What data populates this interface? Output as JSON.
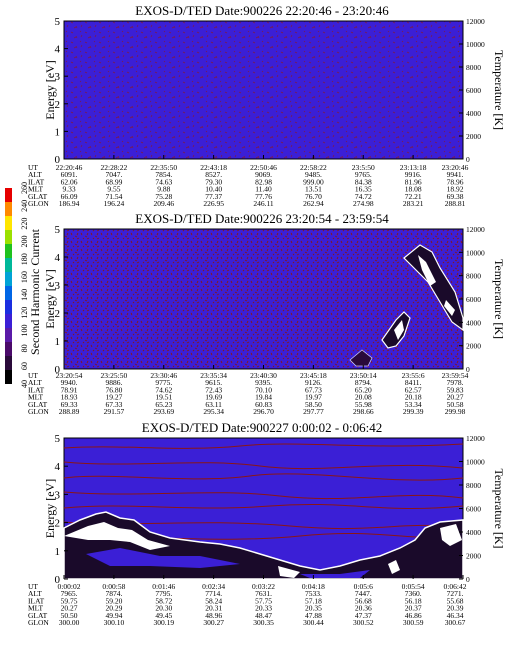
{
  "panels": [
    {
      "title": "EXOS-D/TED   Date:900226  22:20:46 - 23:20:46",
      "row_labels": [
        "UT",
        "ALT",
        "ILAT",
        "MLT",
        "GLAT",
        "GLON"
      ],
      "columns": [
        [
          "22:20:46",
          "6091.",
          "62.06",
          "9.33",
          "66.09",
          "186.94"
        ],
        [
          "22:28:22",
          "7047.",
          "68.99",
          "9.55",
          "71.54",
          "196.24"
        ],
        [
          "22:35:50",
          "7854.",
          "74.63",
          "9.88",
          "75.28",
          "209.46"
        ],
        [
          "22:43:18",
          "8527.",
          "79.30",
          "10.40",
          "77.37",
          "226.95"
        ],
        [
          "22:50:46",
          "9069.",
          "82.98",
          "11.40",
          "77.76",
          "246.11"
        ],
        [
          "22:58:22",
          "9485.",
          "999.00",
          "13.51",
          "76.70",
          "262.94"
        ],
        [
          "23:5:50",
          "9765.",
          "84.38",
          "16.35",
          "74.72",
          "274.98"
        ],
        [
          "23:13:18",
          "9916.",
          "81.96",
          "18.08",
          "72.21",
          "283.21"
        ],
        [
          "23:20:46",
          "9941.",
          "78.96",
          "18.92",
          "69.38",
          "288.81"
        ]
      ]
    },
    {
      "title": "EXOS-D/TED   Date:900226  23:20:54 - 23:59:54",
      "row_labels": [
        "UT",
        "ALT",
        "ILAT",
        "MLT",
        "GLAT",
        "GLON"
      ],
      "columns": [
        [
          "23:20:54",
          "9940.",
          "78.91",
          "18.93",
          "69.33",
          "288.89"
        ],
        [
          "23:25:50",
          "9886.",
          "76.80",
          "19.27",
          "67.33",
          "291.57"
        ],
        [
          "23:30:46",
          "9775.",
          "74.62",
          "19.51",
          "65.23",
          "293.69"
        ],
        [
          "23:35:34",
          "9615.",
          "72.43",
          "19.69",
          "63.11",
          "295.34"
        ],
        [
          "23:40:30",
          "9395.",
          "70.10",
          "19.84",
          "60.83",
          "296.70"
        ],
        [
          "23:45:18",
          "9126.",
          "67.73",
          "19.97",
          "58.50",
          "297.77"
        ],
        [
          "23:50:14",
          "8794.",
          "65.20",
          "20.08",
          "55.98",
          "298.66"
        ],
        [
          "23:55:6",
          "8411.",
          "62.57",
          "20.18",
          "53.34",
          "299.39"
        ],
        [
          "23:59:54",
          "7978.",
          "59.83",
          "20.27",
          "50.58",
          "299.98"
        ]
      ]
    },
    {
      "title": "EXOS-D/TED   Date:900227  0:00:02 - 0:06:42",
      "row_labels": [
        "UT",
        "ALT",
        "ILAT",
        "MLT",
        "GLAT",
        "GLON"
      ],
      "columns": [
        [
          "0:00:02",
          "7965.",
          "59.75",
          "20.27",
          "50.50",
          "300.00"
        ],
        [
          "0:00:58",
          "7874.",
          "59.20",
          "20.29",
          "49.94",
          "300.10"
        ],
        [
          "0:01:46",
          "7795.",
          "58.72",
          "20.30",
          "49.45",
          "300.19"
        ],
        [
          "0:02:34",
          "7714.",
          "58.24",
          "20.31",
          "48.96",
          "300.27"
        ],
        [
          "0:03:22",
          "7631.",
          "57.75",
          "20.33",
          "48.47",
          "300.35"
        ],
        [
          "0:04:18",
          "7533.",
          "57.18",
          "20.35",
          "47.88",
          "300.44"
        ],
        [
          "0:05:6",
          "7447.",
          "56.68",
          "20.36",
          "47.37",
          "300.52"
        ],
        [
          "0:05:54",
          "7360.",
          "56.18",
          "20.37",
          "46.86",
          "300.59"
        ],
        [
          "0:06:42",
          "7271.",
          "55.68",
          "20.39",
          "46.34",
          "300.67"
        ]
      ]
    }
  ],
  "left_axis": {
    "label": "Energy [eV]",
    "ticks": [
      "0",
      "1",
      "2",
      "3",
      "4",
      "5"
    ]
  },
  "right_axis": {
    "label": "Temperature [K]",
    "ticks": [
      "0",
      "2000",
      "4000",
      "6000",
      "8000",
      "10000",
      "12000"
    ]
  },
  "colorbar": {
    "label": "Second Harmonic Current",
    "ticks": [
      "40",
      "60",
      "80",
      "100",
      "120",
      "140",
      "160",
      "180",
      "200",
      "220",
      "240",
      "260"
    ]
  },
  "colors": {
    "field": "#3b1fd6",
    "contour": "#8a1616",
    "white": "#ffffff"
  },
  "chart_data": [
    {
      "type": "heatmap",
      "title": "EXOS-D/TED   Date:900226  22:20:46 - 23:20:46",
      "ylabel": "Energy [eV]",
      "ylim": [
        0,
        5
      ],
      "y2label": "Temperature [K]",
      "y2lim": [
        0,
        12000
      ],
      "x": [
        "22:20:46",
        "22:28:22",
        "22:35:50",
        "22:43:18",
        "22:50:46",
        "22:58:22",
        "23:5:50",
        "23:13:18",
        "23:20:46"
      ]
    },
    {
      "type": "heatmap",
      "title": "EXOS-D/TED   Date:900226  23:20:54 - 23:59:54",
      "ylabel": "Energy [eV]",
      "ylim": [
        0,
        5
      ],
      "y2label": "Temperature [K]",
      "y2lim": [
        0,
        12000
      ],
      "x": [
        "23:20:54",
        "23:25:50",
        "23:30:46",
        "23:35:34",
        "23:40:30",
        "23:45:18",
        "23:50:14",
        "23:55:6",
        "23:59:54"
      ]
    },
    {
      "type": "heatmap",
      "title": "EXOS-D/TED   Date:900227  0:00:02 - 0:06:42",
      "ylabel": "Energy [eV]",
      "ylim": [
        0,
        5
      ],
      "y2label": "Temperature [K]",
      "y2lim": [
        0,
        12000
      ],
      "x": [
        "0:00:02",
        "0:00:58",
        "0:01:46",
        "0:02:34",
        "0:03:22",
        "0:04:18",
        "0:05:6",
        "0:05:54",
        "0:06:42"
      ]
    }
  ]
}
